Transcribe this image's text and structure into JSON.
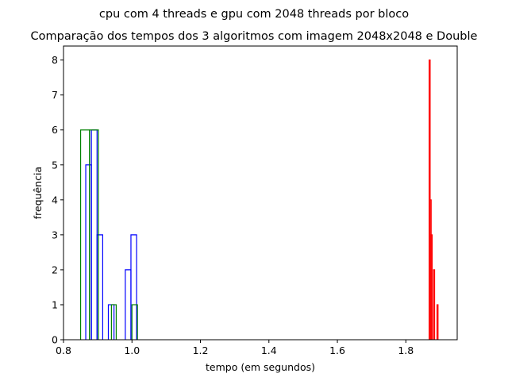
{
  "chart_data": {
    "type": "histogram",
    "suptitle": "cpu com 4 threads e gpu com 2048 threads por bloco",
    "title": "Comparação dos tempos dos 3 algoritmos com imagem 2048x2048 e Double",
    "xlabel": "tempo (em segundos)",
    "ylabel": "frequência",
    "xlim": [
      0.8,
      1.95
    ],
    "ylim": [
      0,
      8.4
    ],
    "x_ticks": [
      0.8,
      1.0,
      1.2,
      1.4,
      1.6,
      1.8
    ],
    "x_tick_labels": [
      "0.8",
      "1.0",
      "1.2",
      "1.4",
      "1.6",
      "1.8"
    ],
    "y_ticks": [
      0,
      1,
      2,
      3,
      4,
      5,
      6,
      7,
      8
    ],
    "y_tick_labels": [
      "0",
      "1",
      "2",
      "3",
      "4",
      "5",
      "6",
      "7",
      "8"
    ],
    "grid": false,
    "legend": null,
    "series": [
      {
        "color": "#0000ff",
        "histtype": "step",
        "edges": [
          0.865,
          0.8815,
          0.898,
          0.9145,
          0.931,
          0.9475,
          0.964,
          0.9805,
          0.997,
          1.0135,
          1.03
        ],
        "counts": [
          5,
          6,
          3,
          0,
          1,
          0,
          0,
          2,
          3,
          0
        ]
      },
      {
        "color": "#008000",
        "histtype": "step",
        "edges": [
          0.85,
          0.876,
          0.902,
          0.928,
          0.94,
          0.954,
          0.98,
          1.0,
          1.016
        ],
        "counts": [
          6,
          6,
          0,
          0,
          1,
          0,
          0,
          1
        ]
      },
      {
        "color": "#ff0000",
        "histtype": "step",
        "edges": [
          1.868,
          1.871,
          1.874,
          1.877,
          1.881,
          1.884,
          1.887,
          1.891,
          1.894
        ],
        "counts": [
          8,
          4,
          3,
          0,
          2,
          0,
          0,
          1
        ]
      }
    ]
  }
}
